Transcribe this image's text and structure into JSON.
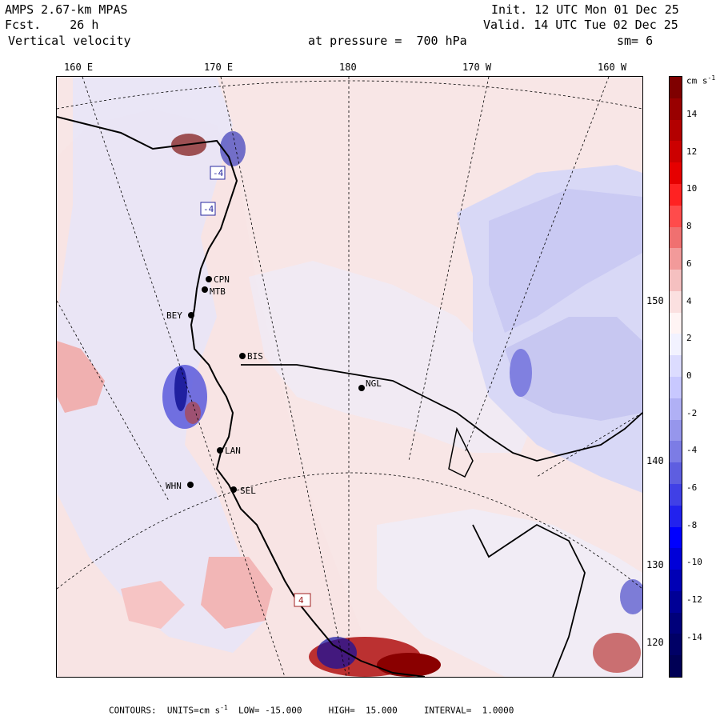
{
  "header": {
    "model": "AMPS 2.67-km MPAS",
    "fcst_label": "Fcst.",
    "fcst_value": "26 h",
    "field": "Vertical velocity",
    "init": "Init. 12 UTC Mon 01 Dec 25",
    "valid": "Valid. 14 UTC Tue 02 Dec 25",
    "pressure_text": "at pressure =  700 hPa",
    "smoothing": "sm= 6"
  },
  "longitude_labels": [
    "160 E",
    "170 E",
    "180",
    "170 W",
    "160 W"
  ],
  "latitude_labels": [
    "150 W",
    "140 W",
    "130 W",
    "120 W"
  ],
  "colorbar": {
    "units_main": "cm s",
    "units_exp": "-1",
    "tick_labels": [
      "14",
      "12",
      "10",
      "8",
      "6",
      "4",
      "2",
      "0",
      "-2",
      "-4",
      "-6",
      "-8",
      "-10",
      "-12",
      "-14"
    ],
    "colors": [
      "#7f0000",
      "#990000",
      "#b30000",
      "#cc0000",
      "#e60000",
      "#ff2222",
      "#ff4b4b",
      "#f07070",
      "#f29a9a",
      "#f5c0c0",
      "#fbe0e0",
      "#fff4f4",
      "#f2f2ff",
      "#dcdcff",
      "#c8c8ff",
      "#b0b0f5",
      "#9696ec",
      "#7c7ce5",
      "#5e5ee0",
      "#4040e6",
      "#2222ee",
      "#0000ff",
      "#0000d8",
      "#0000b5",
      "#000096",
      "#00007a",
      "#000066",
      "#000055"
    ]
  },
  "stations": [
    "CPN",
    "MTB",
    "BEY",
    "BIS",
    "NGL",
    "LAN",
    "WHN",
    "SEL"
  ],
  "box_labels": [
    "-4",
    "-4",
    "4"
  ],
  "footer": {
    "contours": "CONTOURS:",
    "units_label": "UNITS=cm s",
    "units_exp": "-1",
    "low": "LOW= -15.000",
    "high": "HIGH=  15.000",
    "interval": "INTERVAL=  1.0000"
  }
}
